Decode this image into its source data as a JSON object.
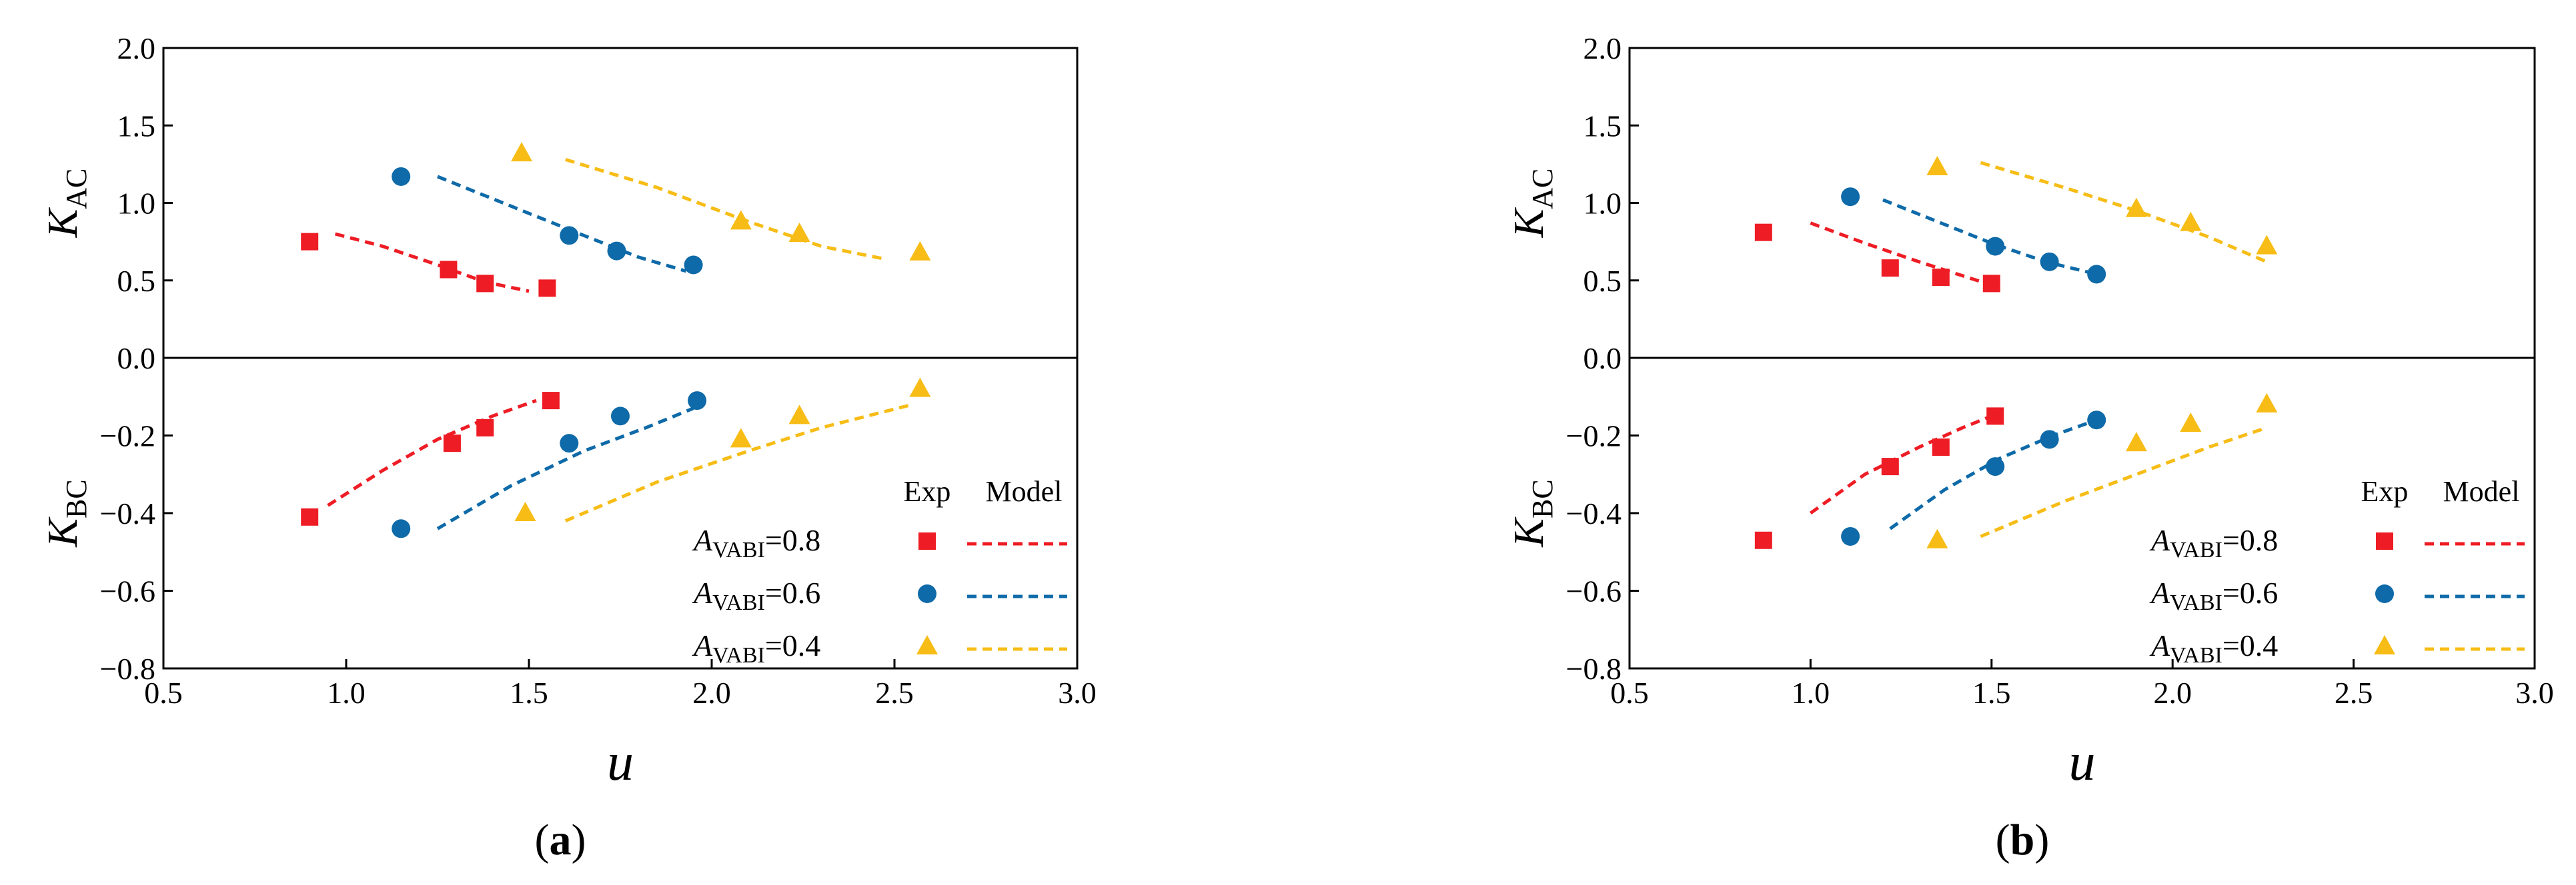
{
  "panel_labels": [
    "a",
    "b"
  ],
  "legend": {
    "exp_header": "Exp",
    "model_header": "Model",
    "entries": [
      {
        "symbol": "A",
        "subscript": "VABI",
        "value_text": "=0.8",
        "marker": "square",
        "color": "#ee1c24"
      },
      {
        "symbol": "A",
        "subscript": "VABI",
        "value_text": "=0.6",
        "marker": "circle",
        "color": "#0e6aa8"
      },
      {
        "symbol": "A",
        "subscript": "VABI",
        "value_text": "=0.4",
        "marker": "triangle",
        "color": "#f7bd16"
      }
    ]
  },
  "chart_data": [
    {
      "type": "scatter",
      "panel": "a",
      "xlabel": "u",
      "xlim": [
        0.5,
        3.0
      ],
      "x_ticks": [
        "0.5",
        "1.0",
        "1.5",
        "2.0",
        "2.5",
        "3.0"
      ],
      "grid": false,
      "legend_position": "lower-right",
      "subplots": [
        {
          "ylabel": "K",
          "ylabel_sub": "AC",
          "ylim": [
            0.0,
            2.0
          ],
          "y_ticks": [
            "0.0",
            "0.5",
            "1.0",
            "1.5",
            "2.0"
          ],
          "series": [
            {
              "name": "A_VABI=0.8",
              "kind": "exp",
              "marker": "square",
              "color": "#ee1c24",
              "x": [
                0.9,
                1.28,
                1.38,
                1.55
              ],
              "y": [
                0.75,
                0.57,
                0.48,
                0.45
              ]
            },
            {
              "name": "A_VABI=0.6",
              "kind": "exp",
              "marker": "circle",
              "color": "#0e6aa8",
              "x": [
                1.15,
                1.61,
                1.74,
                1.95
              ],
              "y": [
                1.17,
                0.79,
                0.69,
                0.6
              ]
            },
            {
              "name": "A_VABI=0.4",
              "kind": "exp",
              "marker": "triangle",
              "color": "#f7bd16",
              "x": [
                1.48,
                2.08,
                2.24,
                2.57
              ],
              "y": [
                1.32,
                0.88,
                0.8,
                0.68
              ]
            },
            {
              "name": "A_VABI=0.8",
              "kind": "model",
              "color": "#ee1c24",
              "x": [
                0.97,
                1.1,
                1.25,
                1.38,
                1.5
              ],
              "y": [
                0.8,
                0.72,
                0.6,
                0.49,
                0.43
              ]
            },
            {
              "name": "A_VABI=0.6",
              "kind": "model",
              "color": "#0e6aa8",
              "x": [
                1.25,
                1.45,
                1.65,
                1.8,
                1.93
              ],
              "y": [
                1.17,
                0.98,
                0.79,
                0.65,
                0.56
              ]
            },
            {
              "name": "A_VABI=0.4",
              "kind": "model",
              "color": "#f7bd16",
              "x": [
                1.6,
                1.85,
                2.1,
                2.3,
                2.47
              ],
              "y": [
                1.28,
                1.1,
                0.88,
                0.72,
                0.64
              ]
            }
          ]
        },
        {
          "ylabel": "K",
          "ylabel_sub": "BC",
          "ylim": [
            -0.8,
            0.0
          ],
          "y_ticks": [
            "−0.2",
            "−0.4",
            "−0.6",
            "−0.8"
          ],
          "series": [
            {
              "name": "A_VABI=0.8",
              "kind": "exp",
              "marker": "square",
              "color": "#ee1c24",
              "x": [
                0.9,
                1.29,
                1.38,
                1.56
              ],
              "y": [
                -0.41,
                -0.22,
                -0.18,
                -0.11
              ]
            },
            {
              "name": "A_VABI=0.6",
              "kind": "exp",
              "marker": "circle",
              "color": "#0e6aa8",
              "x": [
                1.15,
                1.61,
                1.75,
                1.96
              ],
              "y": [
                -0.44,
                -0.22,
                -0.15,
                -0.11
              ]
            },
            {
              "name": "A_VABI=0.4",
              "kind": "exp",
              "marker": "triangle",
              "color": "#f7bd16",
              "x": [
                1.49,
                2.08,
                2.24,
                2.57
              ],
              "y": [
                -0.4,
                -0.21,
                -0.15,
                -0.08
              ]
            },
            {
              "name": "A_VABI=0.8",
              "kind": "model",
              "color": "#ee1c24",
              "x": [
                0.95,
                1.1,
                1.25,
                1.4,
                1.52
              ],
              "y": [
                -0.38,
                -0.29,
                -0.21,
                -0.15,
                -0.11
              ]
            },
            {
              "name": "A_VABI=0.6",
              "kind": "model",
              "color": "#0e6aa8",
              "x": [
                1.25,
                1.45,
                1.65,
                1.82,
                1.95
              ],
              "y": [
                -0.44,
                -0.33,
                -0.24,
                -0.18,
                -0.13
              ]
            },
            {
              "name": "A_VABI=0.4",
              "kind": "model",
              "color": "#f7bd16",
              "x": [
                1.6,
                1.85,
                2.1,
                2.3,
                2.55
              ],
              "y": [
                -0.42,
                -0.32,
                -0.24,
                -0.18,
                -0.12
              ]
            }
          ]
        }
      ]
    },
    {
      "type": "scatter",
      "panel": "b",
      "xlabel": "u",
      "xlim": [
        0.5,
        3.0
      ],
      "x_ticks": [
        "0.5",
        "1.0",
        "1.5",
        "2.0",
        "2.5",
        "3.0"
      ],
      "grid": false,
      "legend_position": "lower-right",
      "subplots": [
        {
          "ylabel": "K",
          "ylabel_sub": "AC",
          "ylim": [
            0.0,
            2.0
          ],
          "y_ticks": [
            "0.0",
            "0.5",
            "1.0",
            "1.5",
            "2.0"
          ],
          "series": [
            {
              "name": "A_VABI=0.8",
              "kind": "exp",
              "marker": "square",
              "color": "#ee1c24",
              "x": [
                0.87,
                1.22,
                1.36,
                1.5
              ],
              "y": [
                0.81,
                0.58,
                0.52,
                0.48
              ]
            },
            {
              "name": "A_VABI=0.6",
              "kind": "exp",
              "marker": "circle",
              "color": "#0e6aa8",
              "x": [
                1.11,
                1.51,
                1.66,
                1.79
              ],
              "y": [
                1.04,
                0.72,
                0.62,
                0.54
              ]
            },
            {
              "name": "A_VABI=0.4",
              "kind": "exp",
              "marker": "triangle",
              "color": "#f7bd16",
              "x": [
                1.35,
                1.9,
                2.05,
                2.26
              ],
              "y": [
                1.23,
                0.96,
                0.87,
                0.72
              ]
            },
            {
              "name": "A_VABI=0.8",
              "kind": "model",
              "color": "#ee1c24",
              "x": [
                1.0,
                1.15,
                1.3,
                1.42,
                1.5
              ],
              "y": [
                0.87,
                0.74,
                0.62,
                0.53,
                0.47
              ]
            },
            {
              "name": "A_VABI=0.6",
              "kind": "model",
              "color": "#0e6aa8",
              "x": [
                1.2,
                1.35,
                1.5,
                1.65,
                1.79
              ],
              "y": [
                1.02,
                0.88,
                0.74,
                0.62,
                0.54
              ]
            },
            {
              "name": "A_VABI=0.4",
              "kind": "model",
              "color": "#f7bd16",
              "x": [
                1.47,
                1.7,
                1.9,
                2.1,
                2.26
              ],
              "y": [
                1.26,
                1.1,
                0.95,
                0.78,
                0.62
              ]
            }
          ]
        },
        {
          "ylabel": "K",
          "ylabel_sub": "BC",
          "ylim": [
            -0.8,
            0.0
          ],
          "y_ticks": [
            "−0.2",
            "−0.4",
            "−0.6",
            "−0.8"
          ],
          "series": [
            {
              "name": "A_VABI=0.8",
              "kind": "exp",
              "marker": "square",
              "color": "#ee1c24",
              "x": [
                0.87,
                1.22,
                1.36,
                1.51
              ],
              "y": [
                -0.47,
                -0.28,
                -0.23,
                -0.15
              ]
            },
            {
              "name": "A_VABI=0.6",
              "kind": "exp",
              "marker": "circle",
              "color": "#0e6aa8",
              "x": [
                1.11,
                1.51,
                1.66,
                1.79
              ],
              "y": [
                -0.46,
                -0.28,
                -0.21,
                -0.16
              ]
            },
            {
              "name": "A_VABI=0.4",
              "kind": "exp",
              "marker": "triangle",
              "color": "#f7bd16",
              "x": [
                1.35,
                1.9,
                2.05,
                2.26
              ],
              "y": [
                -0.47,
                -0.22,
                -0.17,
                -0.12
              ]
            },
            {
              "name": "A_VABI=0.8",
              "kind": "model",
              "color": "#ee1c24",
              "x": [
                1.0,
                1.15,
                1.3,
                1.42,
                1.5
              ],
              "y": [
                -0.4,
                -0.3,
                -0.23,
                -0.18,
                -0.15
              ]
            },
            {
              "name": "A_VABI=0.6",
              "kind": "model",
              "color": "#0e6aa8",
              "x": [
                1.22,
                1.37,
                1.52,
                1.67,
                1.79
              ],
              "y": [
                -0.44,
                -0.34,
                -0.26,
                -0.2,
                -0.16
              ]
            },
            {
              "name": "A_VABI=0.4",
              "kind": "model",
              "color": "#f7bd16",
              "x": [
                1.47,
                1.7,
                1.9,
                2.1,
                2.26
              ],
              "y": [
                -0.46,
                -0.37,
                -0.3,
                -0.23,
                -0.18
              ]
            }
          ]
        }
      ]
    }
  ]
}
